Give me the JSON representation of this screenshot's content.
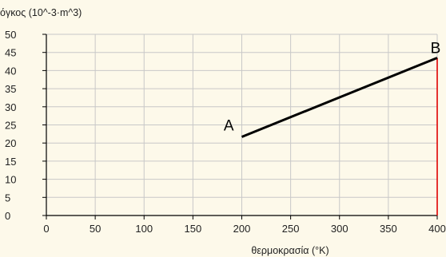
{
  "chart_data": {
    "type": "line",
    "ylabel": "όγκος (10^-3·m^3)",
    "xlabel": "θερμοκρασία (°K)",
    "xlim": [
      0,
      400
    ],
    "ylim": [
      0,
      50
    ],
    "x_ticks": [
      0,
      50,
      100,
      150,
      200,
      250,
      300,
      350,
      400
    ],
    "y_ticks": [
      0,
      5,
      10,
      15,
      20,
      25,
      30,
      35,
      40,
      45,
      50
    ],
    "grid": true,
    "series": [
      {
        "x": [
          200,
          400
        ],
        "y": [
          21.7,
          43.5
        ]
      }
    ],
    "annotations": [
      {
        "text": "A",
        "x": 200,
        "y": 21.7
      },
      {
        "text": "B",
        "x": 400,
        "y": 43.5
      }
    ],
    "marker_line": {
      "x": 400,
      "y_from": 0,
      "y_to": 43.5
    },
    "colors": {
      "background": "#fdf9ea",
      "grid": "#c8c8c8",
      "axis": "#000000",
      "series": "#000000",
      "marker_line": "#e00000"
    }
  }
}
